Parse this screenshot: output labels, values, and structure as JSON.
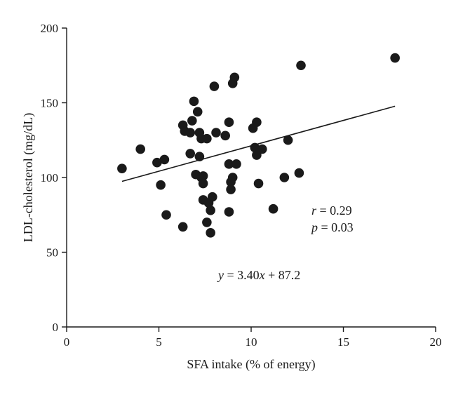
{
  "chart_data": {
    "type": "scatter",
    "title": "",
    "xlabel": "SFA intake (% of energy)",
    "ylabel": "LDL-cholesterol (mg/dL)",
    "xlim": [
      0,
      20
    ],
    "ylim": [
      0,
      200
    ],
    "x_ticks": [
      "0",
      "5",
      "10",
      "15",
      "20"
    ],
    "y_ticks": [
      "0",
      "50",
      "100",
      "150",
      "200"
    ],
    "grid": false,
    "legend": "none",
    "marker_color": "#1a1a1a",
    "series": [
      {
        "points": [
          [
            3.0,
            106
          ],
          [
            4.0,
            119
          ],
          [
            4.9,
            110
          ],
          [
            5.1,
            95
          ],
          [
            5.3,
            112
          ],
          [
            5.4,
            75
          ],
          [
            6.3,
            135
          ],
          [
            6.3,
            67
          ],
          [
            6.4,
            131
          ],
          [
            6.7,
            130
          ],
          [
            6.7,
            116
          ],
          [
            6.8,
            138
          ],
          [
            6.9,
            151
          ],
          [
            7.0,
            102
          ],
          [
            7.1,
            144
          ],
          [
            7.2,
            114
          ],
          [
            7.2,
            130
          ],
          [
            7.3,
            126
          ],
          [
            7.3,
            100
          ],
          [
            7.4,
            85
          ],
          [
            7.4,
            101
          ],
          [
            7.4,
            96
          ],
          [
            7.6,
            126
          ],
          [
            7.6,
            70
          ],
          [
            7.7,
            83
          ],
          [
            7.8,
            63
          ],
          [
            7.8,
            78
          ],
          [
            7.9,
            87
          ],
          [
            8.0,
            161
          ],
          [
            8.1,
            130
          ],
          [
            8.6,
            128
          ],
          [
            8.8,
            137
          ],
          [
            8.8,
            109
          ],
          [
            8.8,
            77
          ],
          [
            8.9,
            92
          ],
          [
            8.9,
            97
          ],
          [
            9.0,
            163
          ],
          [
            9.0,
            100
          ],
          [
            9.1,
            167
          ],
          [
            9.2,
            109
          ],
          [
            10.1,
            133
          ],
          [
            10.2,
            120
          ],
          [
            10.3,
            137
          ],
          [
            10.3,
            115
          ],
          [
            10.4,
            96
          ],
          [
            10.6,
            119
          ],
          [
            11.2,
            79
          ],
          [
            11.8,
            100
          ],
          [
            12.0,
            125
          ],
          [
            12.6,
            103
          ],
          [
            12.7,
            175
          ],
          [
            17.8,
            180
          ]
        ]
      }
    ],
    "trendline": {
      "slope": 3.4,
      "intercept": 87.2,
      "x_range": [
        3.0,
        17.8
      ]
    },
    "annotations": {
      "r_label": "r",
      "r_text": " = 0.29",
      "p_label": "p",
      "p_text": " = 0.03",
      "eq_y": "y",
      "eq_mid": " = 3.40",
      "eq_x": "x",
      "eq_tail": " + 87.2"
    }
  }
}
